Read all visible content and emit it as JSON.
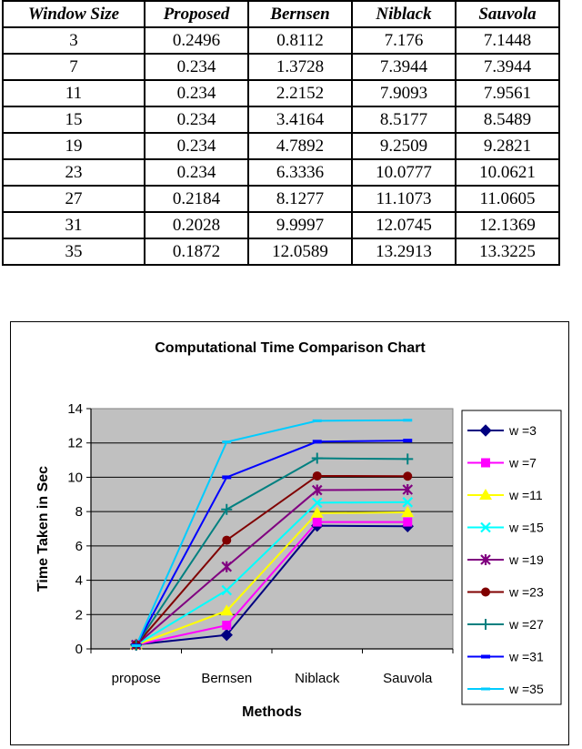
{
  "table": {
    "headers": [
      "Window Size",
      "Proposed",
      "Bernsen",
      "Niblack",
      "Sauvola"
    ],
    "rows": [
      [
        "3",
        "0.2496",
        "0.8112",
        "7.176",
        "7.1448"
      ],
      [
        "7",
        "0.234",
        "1.3728",
        "7.3944",
        "7.3944"
      ],
      [
        "11",
        "0.234",
        "2.2152",
        "7.9093",
        "7.9561"
      ],
      [
        "15",
        "0.234",
        "3.4164",
        "8.5177",
        "8.5489"
      ],
      [
        "19",
        "0.234",
        "4.7892",
        "9.2509",
        "9.2821"
      ],
      [
        "23",
        "0.234",
        "6.3336",
        "10.0777",
        "10.0621"
      ],
      [
        "27",
        "0.2184",
        "8.1277",
        "11.1073",
        "11.0605"
      ],
      [
        "31",
        "0.2028",
        "9.9997",
        "12.0745",
        "12.1369"
      ],
      [
        "35",
        "0.1872",
        "12.0589",
        "13.2913",
        "13.3225"
      ]
    ]
  },
  "chart_data": {
    "type": "line",
    "title": "Computational Time Comparison Chart",
    "xlabel": "Methods",
    "ylabel": "Time Taken in Sec",
    "categories": [
      "propose",
      "Bernsen",
      "Niblack",
      "Sauvola"
    ],
    "ylim": [
      0,
      14
    ],
    "yticks": [
      "0",
      "2",
      "4",
      "6",
      "8",
      "10",
      "12",
      "14"
    ],
    "grid": true,
    "plot_background": "#c0c0c0",
    "legend_position": "right",
    "series": [
      {
        "name": "w =3",
        "color": "#000080",
        "marker": "diamond",
        "values": [
          0.2496,
          0.8112,
          7.176,
          7.1448
        ]
      },
      {
        "name": "w =7",
        "color": "#ff00ff",
        "marker": "square",
        "values": [
          0.234,
          1.3728,
          7.3944,
          7.3944
        ]
      },
      {
        "name": "w =11",
        "color": "#ffff00",
        "marker": "triangle",
        "values": [
          0.234,
          2.2152,
          7.9093,
          7.9561
        ]
      },
      {
        "name": "w =15",
        "color": "#00ffff",
        "marker": "x",
        "values": [
          0.234,
          3.4164,
          8.5177,
          8.5489
        ]
      },
      {
        "name": "w =19",
        "color": "#800080",
        "marker": "star",
        "values": [
          0.234,
          4.7892,
          9.2509,
          9.2821
        ]
      },
      {
        "name": "w =23",
        "color": "#800000",
        "marker": "circle",
        "values": [
          0.234,
          6.3336,
          10.0777,
          10.0621
        ]
      },
      {
        "name": "w =27",
        "color": "#008080",
        "marker": "plus",
        "values": [
          0.2184,
          8.1277,
          11.1073,
          11.0605
        ]
      },
      {
        "name": "w =31",
        "color": "#0000ff",
        "marker": "bar",
        "values": [
          0.2028,
          9.9997,
          12.0745,
          12.1369
        ]
      },
      {
        "name": "w =35",
        "color": "#00ccff",
        "marker": "dash",
        "values": [
          0.1872,
          12.0589,
          13.2913,
          13.3225
        ]
      }
    ]
  }
}
